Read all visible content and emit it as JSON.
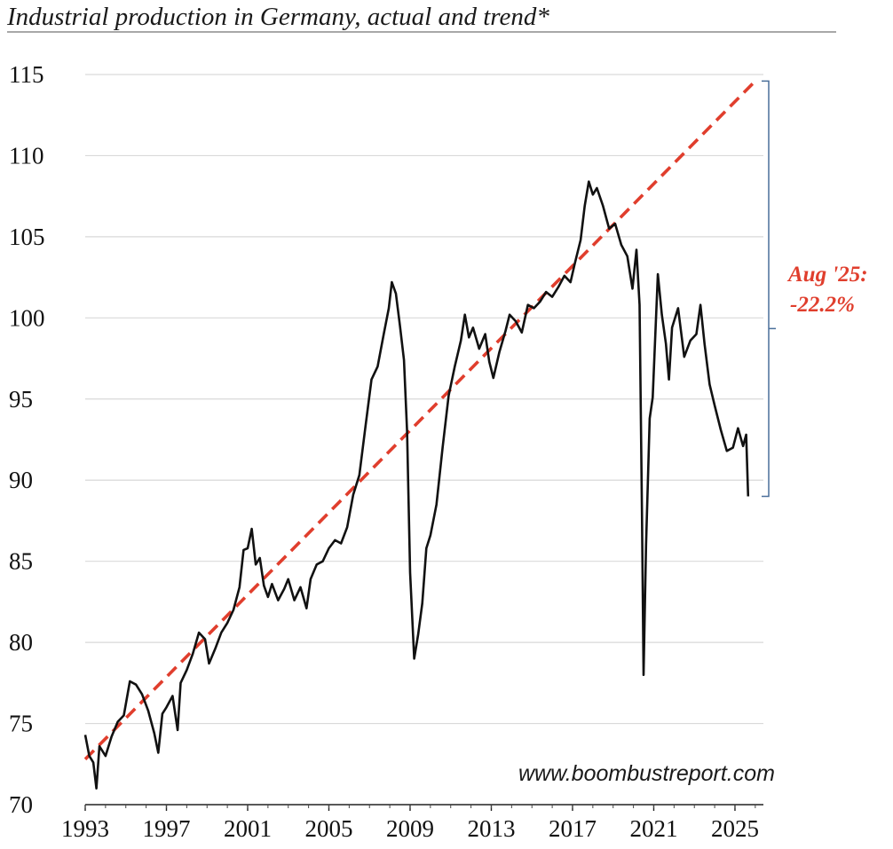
{
  "chart_data": {
    "type": "line",
    "title": "Industrial production in Germany, actual and trend*",
    "xlabel": "",
    "ylabel": "",
    "xlim": [
      1993,
      2026.4
    ],
    "ylim": [
      70,
      115
    ],
    "x_ticks": [
      "1993",
      "1997",
      "2001",
      "2005",
      "2009",
      "2013",
      "2017",
      "2021",
      "2025"
    ],
    "y_ticks": [
      "70",
      "75",
      "80",
      "85",
      "90",
      "95",
      "100",
      "105",
      "110",
      "115"
    ],
    "grid": true,
    "series": [
      {
        "name": "Actual",
        "color": "#111111",
        "style": "solid",
        "points": [
          [
            1993.0,
            74.3
          ],
          [
            1993.2,
            73.0
          ],
          [
            1993.4,
            72.6
          ],
          [
            1993.55,
            71.0
          ],
          [
            1993.7,
            73.6
          ],
          [
            1994.0,
            73.0
          ],
          [
            1994.3,
            74.2
          ],
          [
            1994.6,
            75.1
          ],
          [
            1994.9,
            75.5
          ],
          [
            1995.2,
            77.6
          ],
          [
            1995.5,
            77.4
          ],
          [
            1995.8,
            76.8
          ],
          [
            1996.1,
            75.8
          ],
          [
            1996.4,
            74.4
          ],
          [
            1996.6,
            73.2
          ],
          [
            1996.8,
            75.6
          ],
          [
            1997.0,
            76.0
          ],
          [
            1997.3,
            76.7
          ],
          [
            1997.55,
            74.6
          ],
          [
            1997.7,
            77.5
          ],
          [
            1998.0,
            78.3
          ],
          [
            1998.3,
            79.3
          ],
          [
            1998.6,
            80.6
          ],
          [
            1998.9,
            80.2
          ],
          [
            1999.1,
            78.7
          ],
          [
            1999.4,
            79.6
          ],
          [
            1999.7,
            80.6
          ],
          [
            2000.0,
            81.2
          ],
          [
            2000.3,
            82.0
          ],
          [
            2000.6,
            83.4
          ],
          [
            2000.8,
            85.7
          ],
          [
            2001.0,
            85.8
          ],
          [
            2001.2,
            87.0
          ],
          [
            2001.4,
            84.8
          ],
          [
            2001.6,
            85.2
          ],
          [
            2001.8,
            83.5
          ],
          [
            2002.0,
            82.8
          ],
          [
            2002.2,
            83.6
          ],
          [
            2002.5,
            82.6
          ],
          [
            2002.8,
            83.3
          ],
          [
            2003.0,
            83.9
          ],
          [
            2003.3,
            82.6
          ],
          [
            2003.6,
            83.4
          ],
          [
            2003.9,
            82.1
          ],
          [
            2004.1,
            83.9
          ],
          [
            2004.4,
            84.8
          ],
          [
            2004.7,
            85.0
          ],
          [
            2005.0,
            85.8
          ],
          [
            2005.3,
            86.3
          ],
          [
            2005.6,
            86.1
          ],
          [
            2005.9,
            87.1
          ],
          [
            2006.2,
            89.1
          ],
          [
            2006.5,
            90.3
          ],
          [
            2006.8,
            93.3
          ],
          [
            2007.1,
            96.2
          ],
          [
            2007.4,
            97.0
          ],
          [
            2007.7,
            99.0
          ],
          [
            2007.95,
            100.6
          ],
          [
            2008.1,
            102.2
          ],
          [
            2008.3,
            101.5
          ],
          [
            2008.5,
            99.5
          ],
          [
            2008.7,
            97.4
          ],
          [
            2008.85,
            93.0
          ],
          [
            2009.0,
            84.3
          ],
          [
            2009.2,
            79.0
          ],
          [
            2009.4,
            80.5
          ],
          [
            2009.6,
            82.4
          ],
          [
            2009.8,
            85.8
          ],
          [
            2010.0,
            86.6
          ],
          [
            2010.3,
            88.5
          ],
          [
            2010.6,
            92.0
          ],
          [
            2010.9,
            95.2
          ],
          [
            2011.2,
            97.0
          ],
          [
            2011.5,
            98.6
          ],
          [
            2011.7,
            100.2
          ],
          [
            2011.9,
            98.8
          ],
          [
            2012.1,
            99.4
          ],
          [
            2012.4,
            98.1
          ],
          [
            2012.7,
            99.0
          ],
          [
            2012.9,
            97.3
          ],
          [
            2013.1,
            96.3
          ],
          [
            2013.4,
            97.9
          ],
          [
            2013.7,
            99.2
          ],
          [
            2013.9,
            100.2
          ],
          [
            2014.2,
            99.8
          ],
          [
            2014.5,
            99.1
          ],
          [
            2014.8,
            100.8
          ],
          [
            2015.1,
            100.6
          ],
          [
            2015.4,
            101.0
          ],
          [
            2015.7,
            101.6
          ],
          [
            2016.0,
            101.3
          ],
          [
            2016.3,
            101.9
          ],
          [
            2016.6,
            102.6
          ],
          [
            2016.9,
            102.2
          ],
          [
            2017.1,
            103.3
          ],
          [
            2017.4,
            104.8
          ],
          [
            2017.6,
            106.9
          ],
          [
            2017.8,
            108.4
          ],
          [
            2018.0,
            107.6
          ],
          [
            2018.2,
            108.0
          ],
          [
            2018.5,
            106.9
          ],
          [
            2018.8,
            105.5
          ],
          [
            2019.1,
            105.8
          ],
          [
            2019.4,
            104.5
          ],
          [
            2019.7,
            103.8
          ],
          [
            2019.95,
            101.8
          ],
          [
            2020.15,
            104.2
          ],
          [
            2020.3,
            100.8
          ],
          [
            2020.42,
            88.0
          ],
          [
            2020.5,
            78.0
          ],
          [
            2020.62,
            86.0
          ],
          [
            2020.8,
            93.8
          ],
          [
            2020.95,
            95.1
          ],
          [
            2021.2,
            102.7
          ],
          [
            2021.4,
            100.2
          ],
          [
            2021.6,
            98.4
          ],
          [
            2021.75,
            96.2
          ],
          [
            2021.9,
            99.4
          ],
          [
            2022.2,
            100.6
          ],
          [
            2022.5,
            97.6
          ],
          [
            2022.8,
            98.6
          ],
          [
            2023.1,
            99.0
          ],
          [
            2023.3,
            100.8
          ],
          [
            2023.5,
            98.4
          ],
          [
            2023.75,
            95.9
          ],
          [
            2024.0,
            94.6
          ],
          [
            2024.3,
            93.1
          ],
          [
            2024.6,
            91.8
          ],
          [
            2024.9,
            92.0
          ],
          [
            2025.15,
            93.2
          ],
          [
            2025.4,
            92.1
          ],
          [
            2025.55,
            92.8
          ],
          [
            2025.65,
            89.0
          ]
        ]
      },
      {
        "name": "Trend",
        "color": "#e03e2d",
        "style": "dashed",
        "points": [
          [
            1993.0,
            72.8
          ],
          [
            2026.0,
            114.6
          ]
        ]
      }
    ],
    "annotations": [
      {
        "label_line1": "Aug '25:",
        "label_line2": "-22.2%",
        "color": "#e03e2d",
        "bracket_color": "#4a6f9a",
        "bracket_from": 114.6,
        "bracket_to": 89.0
      }
    ],
    "source": "www.boombustreport.com"
  }
}
